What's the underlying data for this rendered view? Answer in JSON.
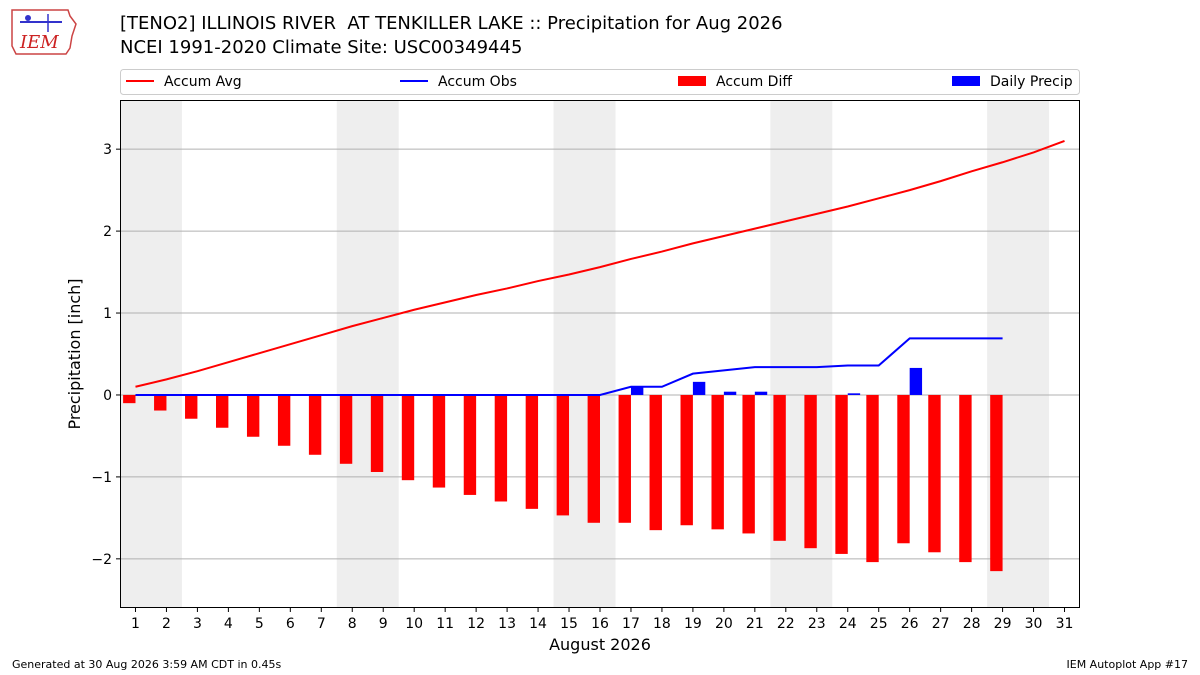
{
  "title_line1": "[TENO2] ILLINOIS RIVER  AT TENKILLER LAKE :: Precipitation for Aug 2026",
  "title_line2": "NCEI 1991-2020 Climate Site: USC00349445",
  "logo_text": "IEM",
  "footer_left": "Generated at 30 Aug 2026 3:59 AM CDT in 0.45s",
  "footer_right": "IEM Autoplot App #17",
  "colors": {
    "accum_avg": "#ff0000",
    "accum_obs": "#0000ff",
    "accum_diff": "#ff0000",
    "daily_precip": "#0000ff",
    "weekend_band": "#eeeeee",
    "grid": "#b0b0b0"
  },
  "chart_data": {
    "type": "bar",
    "xlabel": "August 2026",
    "ylabel": "Precipitation [inch]",
    "ylim": [
      -2.6,
      3.6
    ],
    "xlim": [
      0.5,
      31.5
    ],
    "yticks": [
      -2,
      -1,
      0,
      1,
      2,
      3
    ],
    "ytick_labels": [
      "−2",
      "−1",
      "0",
      "1",
      "2",
      "3"
    ],
    "x": [
      1,
      2,
      3,
      4,
      5,
      6,
      7,
      8,
      9,
      10,
      11,
      12,
      13,
      14,
      15,
      16,
      17,
      18,
      19,
      20,
      21,
      22,
      23,
      24,
      25,
      26,
      27,
      28,
      29,
      30,
      31
    ],
    "grid": "horizontal",
    "legend_position": "top",
    "weekend_bands": [
      [
        1,
        2
      ],
      [
        8,
        9
      ],
      [
        15,
        16
      ],
      [
        22,
        23
      ],
      [
        29,
        30
      ]
    ],
    "series": [
      {
        "name": "Accum Avg",
        "kind": "line",
        "x": [
          1,
          2,
          3,
          4,
          5,
          6,
          7,
          8,
          9,
          10,
          11,
          12,
          13,
          14,
          15,
          16,
          17,
          18,
          19,
          20,
          21,
          22,
          23,
          24,
          25,
          26,
          27,
          28,
          29,
          30,
          31
        ],
        "values": [
          0.1,
          0.19,
          0.29,
          0.4,
          0.51,
          0.62,
          0.73,
          0.84,
          0.94,
          1.04,
          1.13,
          1.22,
          1.3,
          1.39,
          1.47,
          1.56,
          1.66,
          1.75,
          1.85,
          1.94,
          2.03,
          2.12,
          2.21,
          2.3,
          2.4,
          2.5,
          2.61,
          2.73,
          2.84,
          2.96,
          3.1
        ]
      },
      {
        "name": "Accum Obs",
        "kind": "line",
        "x": [
          1,
          2,
          3,
          4,
          5,
          6,
          7,
          8,
          9,
          10,
          11,
          12,
          13,
          14,
          15,
          16,
          17,
          18,
          19,
          20,
          21,
          22,
          23,
          24,
          25,
          26,
          27,
          28,
          29
        ],
        "values": [
          0,
          0,
          0,
          0,
          0,
          0,
          0,
          0,
          0,
          0,
          0,
          0,
          0,
          0,
          0,
          0,
          0.1,
          0.1,
          0.26,
          0.3,
          0.34,
          0.34,
          0.34,
          0.36,
          0.36,
          0.69,
          0.69,
          0.69,
          0.69
        ]
      },
      {
        "name": "Accum Diff",
        "kind": "bar",
        "x": [
          1,
          2,
          3,
          4,
          5,
          6,
          7,
          8,
          9,
          10,
          11,
          12,
          13,
          14,
          15,
          16,
          17,
          18,
          19,
          20,
          21,
          22,
          23,
          24,
          25,
          26,
          27,
          28,
          29
        ],
        "values": [
          -0.1,
          -0.19,
          -0.29,
          -0.4,
          -0.51,
          -0.62,
          -0.73,
          -0.84,
          -0.94,
          -1.04,
          -1.13,
          -1.22,
          -1.3,
          -1.39,
          -1.47,
          -1.56,
          -1.56,
          -1.65,
          -1.59,
          -1.64,
          -1.69,
          -1.78,
          -1.87,
          -1.94,
          -2.04,
          -1.81,
          -1.92,
          -2.04,
          -2.15
        ]
      },
      {
        "name": "Daily Precip",
        "kind": "bar",
        "x": [
          17,
          19,
          20,
          21,
          24,
          26
        ],
        "values": [
          0.1,
          0.16,
          0.04,
          0.04,
          0.02,
          0.33
        ]
      }
    ]
  }
}
